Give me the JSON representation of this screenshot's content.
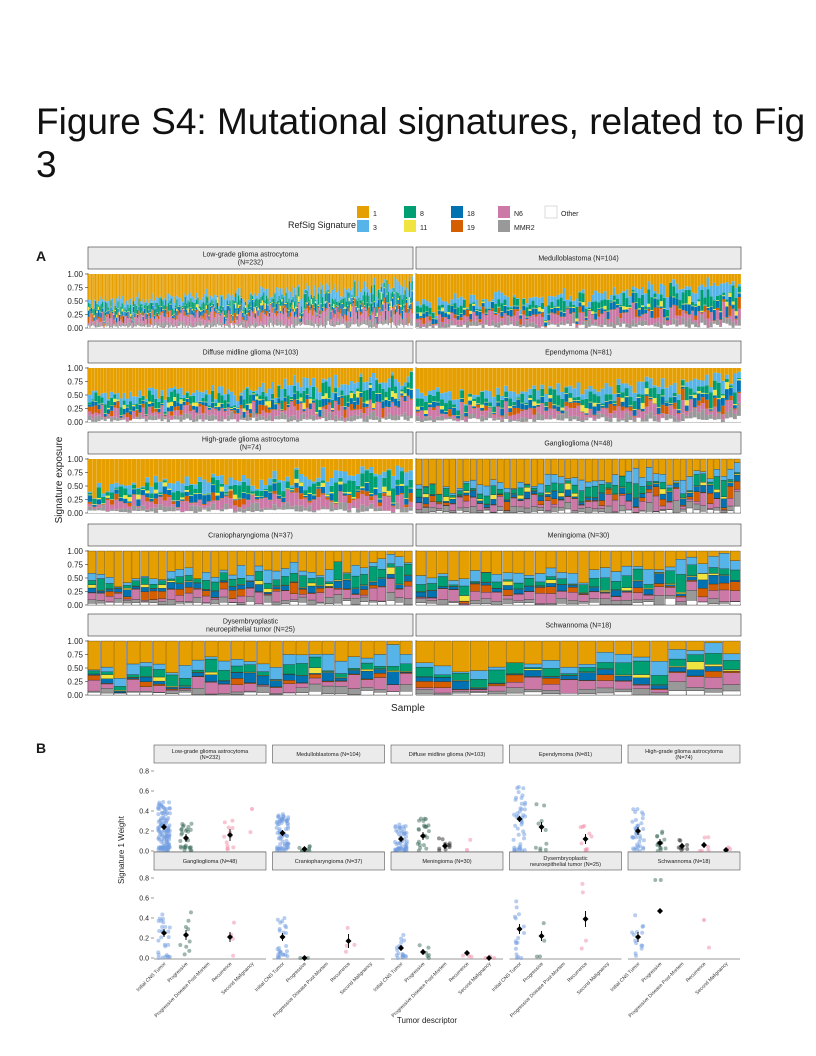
{
  "page": {
    "title": "Figure S4: Mutational signatures, related to Fig 3",
    "panel_a_letter": "A",
    "panel_b_letter": "B"
  },
  "colors": {
    "sig_1": "#E69F00",
    "sig_3": "#56B4E9",
    "sig_8": "#009E73",
    "sig_11": "#F0E442",
    "sig_18": "#0072B2",
    "sig_19": "#D55E00",
    "sig_N6": "#CC79A7",
    "sig_MMR2": "#999999",
    "sig_Other": "#FFFFFF",
    "strip_bg": "#EBEBEB",
    "initial": "#6F9BE0",
    "progressive": "#3E6E5B",
    "ppm": "#2E2E2E",
    "recurrence": "#F28BA5",
    "second": "#F28BA5"
  },
  "chart_data": [
    {
      "type": "bar",
      "subtype": "stacked-100-percent",
      "panel": "A",
      "legend_title": "RefSig Signature",
      "legend_items": [
        "1",
        "3",
        "8",
        "11",
        "18",
        "19",
        "N6",
        "MMR2",
        "Other"
      ],
      "xlabel": "Sample",
      "ylabel": "Signature exposure",
      "ylim": [
        0,
        1
      ],
      "yticks": [
        "0.00",
        "0.25",
        "0.50",
        "0.75",
        "1.00"
      ],
      "grid": false,
      "legend_position": "top",
      "facets": [
        {
          "label": "Low-grade glioma astrocytoma\n(N=232)",
          "n": 232,
          "seed": 11
        },
        {
          "label": "Medulloblastoma (N=104)",
          "n": 104,
          "seed": 23
        },
        {
          "label": "Diffuse midline glioma (N=103)",
          "n": 103,
          "seed": 37
        },
        {
          "label": "Ependymoma (N=81)",
          "n": 81,
          "seed": 41
        },
        {
          "label": "High-grade glioma astrocytoma\n(N=74)",
          "n": 74,
          "seed": 53
        },
        {
          "label": "Ganglioglioma (N=48)",
          "n": 48,
          "seed": 67
        },
        {
          "label": "Craniopharyngioma (N=37)",
          "n": 37,
          "seed": 71
        },
        {
          "label": "Meningioma (N=30)",
          "n": 30,
          "seed": 83
        },
        {
          "label": "Dysembryoplastic\nneuroepithelial tumor (N=25)",
          "n": 25,
          "seed": 97
        },
        {
          "label": "Schwannoma (N=18)",
          "n": 18,
          "seed": 101
        }
      ]
    },
    {
      "type": "scatter",
      "panel": "B",
      "xlabel": "Tumor descriptor",
      "ylabel": "Signature 1 Weight",
      "ylim": [
        0,
        0.8
      ],
      "yticks": [
        "0.0",
        "0.2",
        "0.4",
        "0.6",
        "0.8"
      ],
      "categories": [
        "Initial CNS Tumor",
        "Progressive",
        "Progressive Disease Post-Mortem",
        "Recurrence",
        "Second Malignancy"
      ],
      "facets": [
        {
          "label": "Low-grade glioma astrocytoma\n(N=232)",
          "means": [
            0.24,
            0.13,
            null,
            0.16,
            null
          ],
          "counts": [
            120,
            28,
            0,
            12,
            1
          ],
          "err": [
            0.03,
            0.04,
            0,
            0.06,
            0
          ],
          "single": [
            null,
            null,
            null,
            null,
            0.42
          ]
        },
        {
          "label": "Medulloblastoma (N=104)",
          "means": [
            0.18,
            0.02,
            null,
            null,
            null
          ],
          "counts": [
            70,
            10,
            0,
            0,
            0
          ],
          "err": [
            0.03,
            0.02,
            0,
            0,
            0
          ],
          "single": [
            null,
            null,
            null,
            null,
            null
          ]
        },
        {
          "label": "Diffuse midline glioma (N=103)",
          "means": [
            0.12,
            0.15,
            0.05,
            null,
            null
          ],
          "counts": [
            55,
            22,
            10,
            1,
            0
          ],
          "err": [
            0.03,
            0.04,
            0.03,
            0,
            0
          ],
          "single": [
            null,
            null,
            null,
            0.01,
            null
          ]
        },
        {
          "label": "Ependymoma (N=81)",
          "means": [
            0.32,
            0.24,
            null,
            0.12,
            null
          ],
          "counts": [
            45,
            10,
            0,
            9,
            0
          ],
          "err": [
            0.03,
            0.05,
            0,
            0.05,
            0
          ],
          "single": [
            null,
            null,
            null,
            null,
            null
          ]
        },
        {
          "label": "High-grade glioma astrocytoma\n(N=74)",
          "means": [
            0.2,
            0.08,
            0.05,
            0.06,
            0.01
          ],
          "counts": [
            38,
            14,
            8,
            6,
            3
          ],
          "err": [
            0.04,
            0.04,
            0.03,
            0.03,
            0.01
          ],
          "single": [
            null,
            null,
            null,
            null,
            null
          ]
        },
        {
          "label": "Ganglioglioma (N=48)",
          "means": [
            0.25,
            0.23,
            null,
            0.21,
            null
          ],
          "counts": [
            28,
            9,
            0,
            4,
            0
          ],
          "err": [
            0.04,
            0.05,
            0,
            0.05,
            0
          ],
          "single": [
            null,
            null,
            null,
            null,
            null
          ]
        },
        {
          "label": "Craniopharyngioma (N=37)",
          "means": [
            0.21,
            0.0,
            null,
            0.17,
            null
          ],
          "counts": [
            26,
            2,
            0,
            4,
            0
          ],
          "err": [
            0.04,
            0.01,
            0,
            0.07,
            0
          ],
          "single": [
            null,
            null,
            null,
            null,
            null
          ]
        },
        {
          "label": "Meningioma (N=30)",
          "means": [
            0.1,
            0.06,
            null,
            0.05,
            0.0
          ],
          "counts": [
            18,
            6,
            0,
            3,
            3
          ],
          "err": [
            0.03,
            0.03,
            0,
            0.02,
            0.01
          ],
          "single": [
            null,
            null,
            null,
            null,
            null
          ]
        },
        {
          "label": "Dysembryoplastic\nneuroepithelial tumor (N=25)",
          "means": [
            0.29,
            0.22,
            null,
            0.39,
            null
          ],
          "counts": [
            16,
            4,
            0,
            4,
            0
          ],
          "err": [
            0.05,
            0.05,
            0,
            0.08,
            0
          ],
          "single": [
            null,
            null,
            null,
            null,
            null
          ]
        },
        {
          "label": "Schwannoma (N=18)",
          "means": [
            0.21,
            0.47,
            null,
            null,
            null
          ],
          "counts": [
            14,
            2,
            0,
            1,
            0
          ],
          "err": [
            0.05,
            0.02,
            0,
            0,
            0
          ],
          "single": [
            null,
            null,
            null,
            0.38,
            null
          ]
        }
      ]
    }
  ]
}
